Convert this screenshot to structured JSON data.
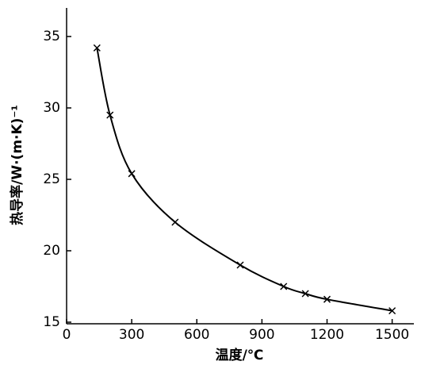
{
  "chart_data": {
    "type": "line",
    "x_label": "温度/℃",
    "y_label": "热导率/W·(m·K)⁻¹",
    "series": [
      {
        "color": "#000000",
        "marker": "x",
        "x": [
          140,
          200,
          300,
          500,
          800,
          1000,
          1100,
          1200,
          1500
        ],
        "values": [
          34.2,
          29.5,
          25.4,
          22.0,
          19.0,
          17.5,
          17.0,
          16.6,
          15.8
        ]
      }
    ],
    "xlim": [
      0,
      1600
    ],
    "xticks": [
      0,
      300,
      600,
      900,
      1200,
      1500
    ],
    "ylim": [
      15,
      37
    ],
    "yticks": [
      15,
      20,
      25,
      30,
      35
    ],
    "grid": false
  }
}
